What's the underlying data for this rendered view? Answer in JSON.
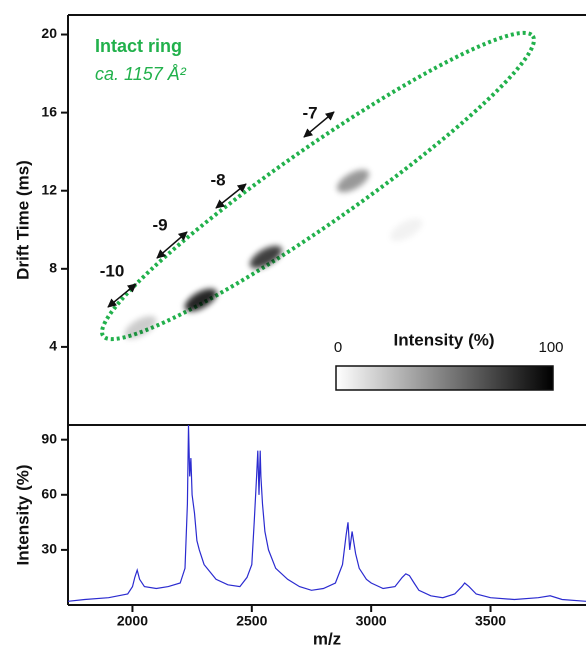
{
  "chart_data": [
    {
      "type": "heatmap",
      "title": "Intact ring",
      "subtitle": "ca. 1157 Å²",
      "title_color": "#22b14c",
      "annotations": [
        "-10",
        "-9",
        "-8",
        "-7"
      ],
      "x": [
        2033,
        2286,
        2559,
        2924,
        3147
      ],
      "y": [
        5.0,
        6.4,
        8.6,
        12.5,
        10.0
      ],
      "values": [
        20,
        85,
        75,
        40,
        5
      ],
      "xlim": [
        1730,
        3900
      ],
      "ylim": [
        0,
        21
      ],
      "yticks": [
        4,
        8,
        12,
        16,
        20
      ],
      "ylabel": "Drift Time (ms)",
      "colorbar": {
        "label": "Intensity (%)",
        "lim": [
          0,
          100
        ],
        "ticks": [
          0,
          100
        ]
      }
    },
    {
      "type": "line",
      "color": "#2b2bd0",
      "xlabel": "m/z",
      "ylabel": "Intensity (%)",
      "x": [
        1730,
        1800,
        1900,
        1980,
        2000,
        2010,
        2020,
        2030,
        2050,
        2100,
        2150,
        2200,
        2220,
        2230,
        2235,
        2240,
        2245,
        2250,
        2260,
        2270,
        2280,
        2300,
        2350,
        2400,
        2450,
        2480,
        2500,
        2510,
        2520,
        2525,
        2530,
        2535,
        2538,
        2545,
        2555,
        2570,
        2600,
        2650,
        2700,
        2750,
        2800,
        2850,
        2880,
        2895,
        2903,
        2910,
        2920,
        2935,
        2950,
        2980,
        3000,
        3050,
        3100,
        3130,
        3145,
        3160,
        3180,
        3200,
        3250,
        3300,
        3350,
        3380,
        3392,
        3410,
        3440,
        3500,
        3600,
        3700,
        3750,
        3800,
        3900
      ],
      "values": [
        2,
        3,
        4,
        6,
        10,
        15,
        19,
        14,
        10,
        9,
        10,
        12,
        20,
        55,
        98,
        70,
        80,
        60,
        50,
        35,
        30,
        22,
        14,
        11,
        10,
        15,
        22,
        45,
        70,
        84,
        60,
        84,
        70,
        55,
        40,
        30,
        20,
        14,
        10,
        8,
        9,
        12,
        22,
        38,
        45,
        30,
        40,
        28,
        20,
        14,
        12,
        9,
        10,
        15,
        17,
        16,
        12,
        8,
        5,
        4,
        6,
        10,
        12,
        10,
        6,
        4,
        3,
        4,
        5,
        3,
        2
      ],
      "xlim": [
        1730,
        3900
      ],
      "ylim": [
        0,
        98
      ],
      "xticks": [
        2000,
        2500,
        3000,
        3500
      ],
      "yticks": [
        30,
        60,
        90
      ]
    }
  ]
}
